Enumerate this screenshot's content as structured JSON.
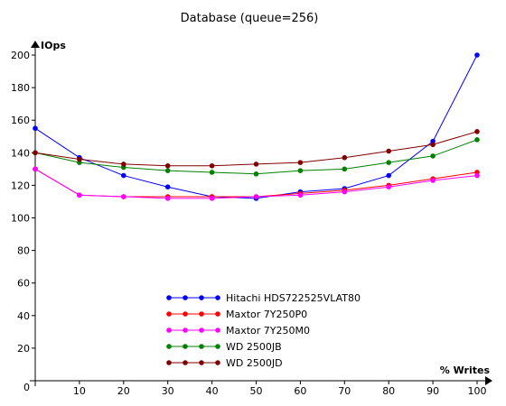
{
  "chart_data": {
    "type": "line",
    "title": "Database (queue=256)",
    "xlabel": "% Writes",
    "ylabel": "IOps",
    "x": [
      0,
      10,
      20,
      30,
      40,
      50,
      60,
      70,
      80,
      90,
      100
    ],
    "xlim": [
      0,
      100
    ],
    "ylim": [
      0,
      200
    ],
    "xticks": [
      0,
      10,
      20,
      30,
      40,
      50,
      60,
      70,
      80,
      90,
      100
    ],
    "yticks": [
      20,
      40,
      60,
      80,
      100,
      120,
      140,
      160,
      180,
      200
    ],
    "origin_label": "0",
    "grid": false,
    "legend_position": "center-right",
    "series": [
      {
        "name": "Hitachi HDS722525VLAT80",
        "color": "#0000ff",
        "values": [
          155,
          137,
          126,
          119,
          113,
          112,
          116,
          118,
          126,
          147,
          200
        ]
      },
      {
        "name": "Maxtor 7Y250P0",
        "color": "#ff0000",
        "values": [
          130,
          114,
          113,
          113,
          113,
          113,
          115,
          117,
          120,
          124,
          128
        ]
      },
      {
        "name": "Maxtor 7Y250M0",
        "color": "#ff00ff",
        "values": [
          130,
          114,
          113,
          112,
          112,
          113,
          114,
          116,
          119,
          123,
          126
        ]
      },
      {
        "name": "WD 2500JB",
        "color": "#008000",
        "values": [
          140,
          134,
          131,
          129,
          128,
          127,
          129,
          130,
          134,
          138,
          148
        ]
      },
      {
        "name": "WD 2500JD",
        "color": "#800000",
        "values": [
          140,
          136,
          133,
          132,
          132,
          133,
          134,
          137,
          141,
          145,
          153
        ]
      }
    ]
  }
}
